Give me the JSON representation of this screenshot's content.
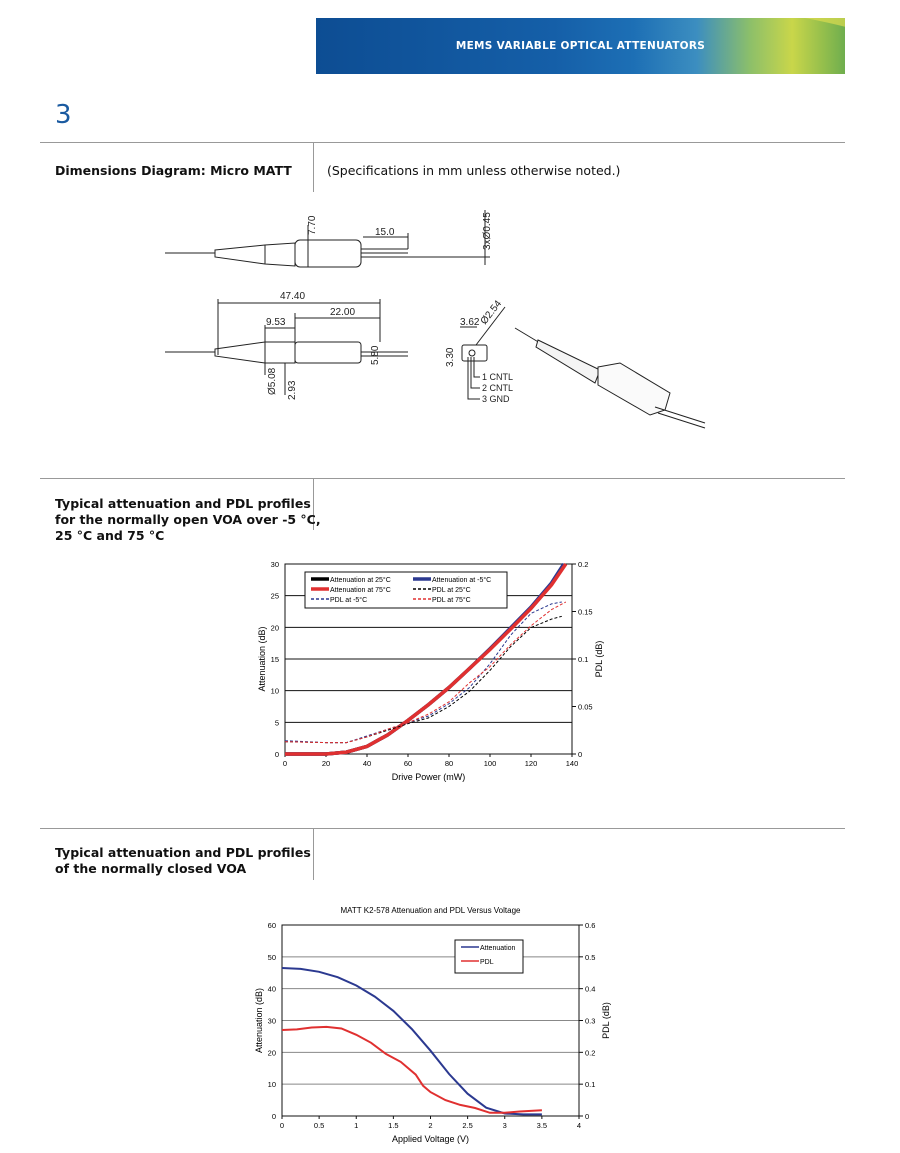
{
  "header": {
    "banner_title": "MEMS VARIABLE OPTICAL ATTENUATORS",
    "page_number": "3"
  },
  "section1": {
    "title": "Dimensions Diagram: Micro MATT",
    "note": "(Specifications in mm unless otherwise noted.)",
    "dims": {
      "d1": "7.70",
      "d2": "15.0",
      "d3": "3xØ0.45",
      "d4": "47.40",
      "d5": "22.00",
      "d6": "9.53",
      "d7": "5.80",
      "d8": "Ø5.08",
      "d9": "2.93",
      "d10": "3.62",
      "d11": "Ø2.54",
      "d12": "3.30"
    },
    "pins": [
      "1  CNTL",
      "2  CNTL",
      "3   GND"
    ]
  },
  "section2": {
    "title_lines": [
      "Typical attenuation and PDL profiles",
      "for the normally open VOA over -5 °C,",
      "25 °C and 75 °C"
    ]
  },
  "section3": {
    "title_lines": [
      "Typical attenuation and PDL profiles",
      "of the normally closed VOA"
    ]
  },
  "chart_data": [
    {
      "type": "line",
      "title": "",
      "xlabel": "Drive Power (mW)",
      "ylabel": "Attenuation (dB)",
      "y2label": "PDL (dB)",
      "xlim": [
        0,
        140
      ],
      "ylim": [
        0,
        30
      ],
      "y2lim": [
        0,
        0.2
      ],
      "xticks": [
        "0",
        "20",
        "40",
        "60",
        "80",
        "100",
        "120",
        "140"
      ],
      "yticks": [
        "0",
        "5",
        "10",
        "15",
        "20",
        "25",
        "30"
      ],
      "y2ticks": [
        "0",
        "0.05",
        "0.1",
        "0.15",
        "0.2"
      ],
      "grid": true,
      "legend": "top-left",
      "series": [
        {
          "name": "Attenuation at 25°C",
          "axis": "left",
          "color": "#000000",
          "style": "solid",
          "x": [
            0,
            20,
            30,
            40,
            50,
            60,
            70,
            80,
            90,
            100,
            110,
            120,
            130,
            136
          ],
          "y": [
            0,
            0,
            0.3,
            1.2,
            3,
            5.3,
            7.8,
            10.5,
            13.5,
            16.6,
            19.8,
            23,
            26.8,
            29.8
          ]
        },
        {
          "name": "Attenuation at -5°C",
          "axis": "left",
          "color": "#2b3990",
          "style": "solid",
          "x": [
            0,
            20,
            30,
            40,
            50,
            60,
            70,
            80,
            90,
            100,
            110,
            120,
            130,
            136
          ],
          "y": [
            0,
            0,
            0.3,
            1.2,
            3,
            5.3,
            7.8,
            10.5,
            13.5,
            16.6,
            19.9,
            23.2,
            27,
            30
          ]
        },
        {
          "name": "Attenuation at 75°C",
          "axis": "left",
          "color": "#e03030",
          "style": "solid",
          "x": [
            0,
            20,
            30,
            40,
            50,
            60,
            70,
            80,
            90,
            100,
            110,
            120,
            130,
            137
          ],
          "y": [
            0,
            0,
            0.3,
            1.2,
            3,
            5.3,
            7.8,
            10.5,
            13.5,
            16.5,
            19.7,
            23,
            26.7,
            30
          ]
        },
        {
          "name": "PDL at 25°C",
          "axis": "right",
          "color": "#000000",
          "style": "dash",
          "x": [
            0,
            20,
            30,
            40,
            50,
            60,
            70,
            80,
            90,
            100,
            110,
            120,
            130,
            135
          ],
          "y": [
            0.013,
            0.012,
            0.012,
            0.018,
            0.025,
            0.032,
            0.038,
            0.05,
            0.066,
            0.088,
            0.113,
            0.133,
            0.142,
            0.145
          ]
        },
        {
          "name": "PDL at -5°C",
          "axis": "right",
          "color": "#2b3990",
          "style": "dash",
          "x": [
            0,
            20,
            30,
            40,
            50,
            60,
            70,
            80,
            90,
            100,
            110,
            120,
            130,
            135
          ],
          "y": [
            0.014,
            0.012,
            0.012,
            0.019,
            0.026,
            0.033,
            0.04,
            0.053,
            0.07,
            0.095,
            0.125,
            0.148,
            0.158,
            0.16
          ]
        },
        {
          "name": "PDL at 75°C",
          "axis": "right",
          "color": "#e03030",
          "style": "dash",
          "x": [
            0,
            20,
            30,
            40,
            50,
            60,
            70,
            80,
            90,
            100,
            110,
            120,
            130,
            137
          ],
          "y": [
            0.013,
            0.012,
            0.012,
            0.018,
            0.026,
            0.033,
            0.042,
            0.055,
            0.075,
            0.092,
            0.115,
            0.135,
            0.152,
            0.16
          ]
        }
      ]
    },
    {
      "type": "line",
      "title": "MATT K2-578 Attenuation and PDL Versus Voltage",
      "xlabel": "Applied Voltage (V)",
      "ylabel": "Attenuation (dB)",
      "y2label": "PDL (dB)",
      "xlim": [
        0,
        4
      ],
      "ylim": [
        0,
        60
      ],
      "y2lim": [
        0,
        0.6
      ],
      "xticks": [
        "0",
        "0.5",
        "1",
        "1.5",
        "2",
        "2.5",
        "3",
        "3.5",
        "4"
      ],
      "yticks": [
        "0",
        "10",
        "20",
        "30",
        "40",
        "50",
        "60"
      ],
      "y2ticks": [
        "0",
        "0.1",
        "0.2",
        "0.3",
        "0.4",
        "0.5",
        "0.6"
      ],
      "grid": true,
      "legend": "top-right",
      "series": [
        {
          "name": "Attenuation",
          "axis": "left",
          "color": "#2b3990",
          "style": "solid",
          "x": [
            0,
            0.25,
            0.5,
            0.75,
            1,
            1.25,
            1.5,
            1.75,
            2,
            2.25,
            2.5,
            2.75,
            3,
            3.25,
            3.5
          ],
          "y": [
            46.5,
            46.2,
            45.3,
            43.6,
            41,
            37.5,
            33,
            27.3,
            20.5,
            13.2,
            7,
            2.6,
            0.8,
            0.5,
            0.5
          ]
        },
        {
          "name": "PDL",
          "axis": "right",
          "color": "#e03030",
          "style": "solid",
          "x": [
            0,
            0.2,
            0.4,
            0.6,
            0.8,
            1,
            1.2,
            1.4,
            1.6,
            1.8,
            1.9,
            2,
            2.2,
            2.4,
            2.6,
            2.8,
            3,
            3.2,
            3.5
          ],
          "y": [
            0.27,
            0.272,
            0.278,
            0.28,
            0.275,
            0.255,
            0.23,
            0.195,
            0.17,
            0.13,
            0.095,
            0.075,
            0.05,
            0.035,
            0.025,
            0.01,
            0.01,
            0.014,
            0.018
          ]
        }
      ]
    }
  ]
}
